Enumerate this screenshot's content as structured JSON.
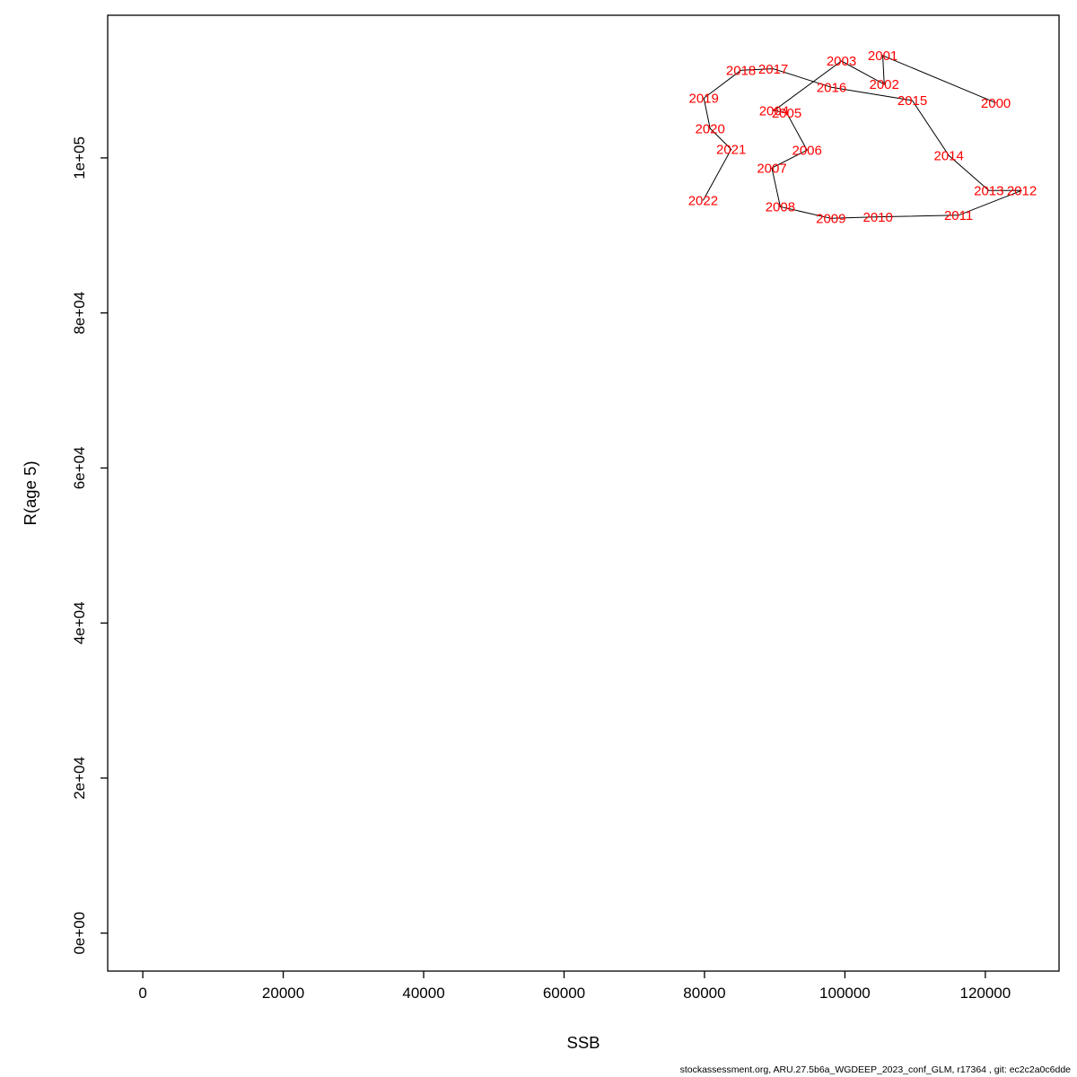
{
  "page": {
    "background": "#ffffff"
  },
  "footer": {
    "text": "stockassessment.org, ARU.27.5b6a_WGDEEP_2023_conf_GLM, r17364 , git: ec2c2a0c6dde"
  },
  "chart_data": {
    "type": "scatter",
    "title": "",
    "xlabel": "SSB",
    "ylabel": "R(age 5)",
    "legend": "none",
    "grid": false,
    "line_color": "#000000",
    "label_color": "#ff0000",
    "axis_color": "#000000",
    "xlim": [
      -5000,
      130500
    ],
    "ylim": [
      -4900,
      118400
    ],
    "x_ticks": [
      {
        "value": 0,
        "label": "0"
      },
      {
        "value": 20000,
        "label": "20000"
      },
      {
        "value": 40000,
        "label": "40000"
      },
      {
        "value": 60000,
        "label": "60000"
      },
      {
        "value": 80000,
        "label": "80000"
      },
      {
        "value": 100000,
        "label": "100000"
      },
      {
        "value": 120000,
        "label": "120000"
      }
    ],
    "y_ticks": [
      {
        "value": 0,
        "label": "0e+00"
      },
      {
        "value": 20000,
        "label": "2e+04"
      },
      {
        "value": 40000,
        "label": "4e+04"
      },
      {
        "value": 60000,
        "label": "6e+04"
      },
      {
        "value": 80000,
        "label": "8e+04"
      },
      {
        "value": 100000,
        "label": "1e+05"
      }
    ],
    "points": [
      {
        "year": "2000",
        "ssb": 121500,
        "r": 107100
      },
      {
        "year": "2001",
        "ssb": 105400,
        "r": 113200
      },
      {
        "year": "2002",
        "ssb": 105600,
        "r": 109500
      },
      {
        "year": "2003",
        "ssb": 99500,
        "r": 112500
      },
      {
        "year": "2004",
        "ssb": 89900,
        "r": 106100
      },
      {
        "year": "2005",
        "ssb": 91700,
        "r": 105800
      },
      {
        "year": "2006",
        "ssb": 94600,
        "r": 101000
      },
      {
        "year": "2007",
        "ssb": 89600,
        "r": 98700
      },
      {
        "year": "2008",
        "ssb": 90800,
        "r": 93700
      },
      {
        "year": "2009",
        "ssb": 98000,
        "r": 92200
      },
      {
        "year": "2010",
        "ssb": 104700,
        "r": 92400
      },
      {
        "year": "2011",
        "ssb": 116200,
        "r": 92600
      },
      {
        "year": "2012",
        "ssb": 125200,
        "r": 95800
      },
      {
        "year": "2013",
        "ssb": 120500,
        "r": 95800
      },
      {
        "year": "2014",
        "ssb": 114800,
        "r": 100300
      },
      {
        "year": "2015",
        "ssb": 109600,
        "r": 107400
      },
      {
        "year": "2016",
        "ssb": 98100,
        "r": 109100
      },
      {
        "year": "2017",
        "ssb": 89800,
        "r": 111500
      },
      {
        "year": "2018",
        "ssb": 85200,
        "r": 111300
      },
      {
        "year": "2019",
        "ssb": 79900,
        "r": 107700
      },
      {
        "year": "2020",
        "ssb": 80800,
        "r": 103800
      },
      {
        "year": "2021",
        "ssb": 83800,
        "r": 101100
      },
      {
        "year": "2022",
        "ssb": 79800,
        "r": 94500
      }
    ]
  }
}
